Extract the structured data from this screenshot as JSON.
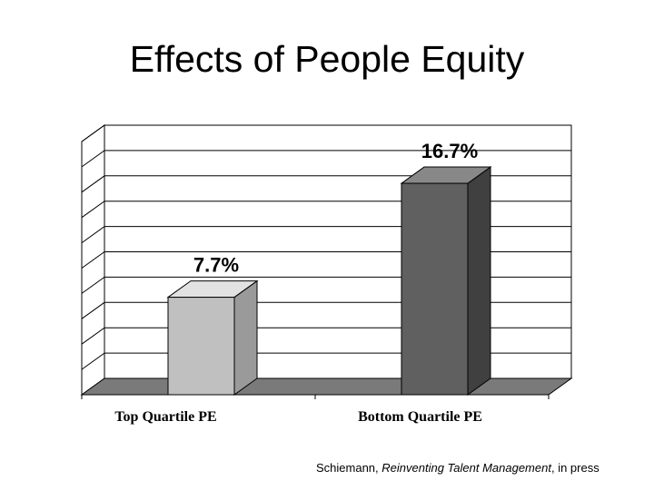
{
  "slide": {
    "title": "Effects of People Equity"
  },
  "chart_data": {
    "type": "bar",
    "style": "3d",
    "categories": [
      "Top Quartile PE",
      "Bottom Quartile PE"
    ],
    "values": [
      7.7,
      16.7
    ],
    "data_labels": [
      "7.7%",
      "16.7%"
    ],
    "ylim": [
      0,
      20
    ],
    "grid": true,
    "title": "",
    "xlabel": "",
    "ylabel": "",
    "colors": {
      "bars": [
        "#c0c0c0",
        "#606060"
      ],
      "bar_sides": [
        "#9a9a9a",
        "#404040"
      ],
      "bar_tops": [
        "#e2e2e2",
        "#888888"
      ],
      "floor": "#7a7a7a",
      "plot_background": "#ffffff",
      "gridline": "#000000"
    }
  },
  "source": {
    "prefix": "Schiemann, ",
    "italic": "Reinventing Talent Management",
    "suffix": ", in press"
  }
}
